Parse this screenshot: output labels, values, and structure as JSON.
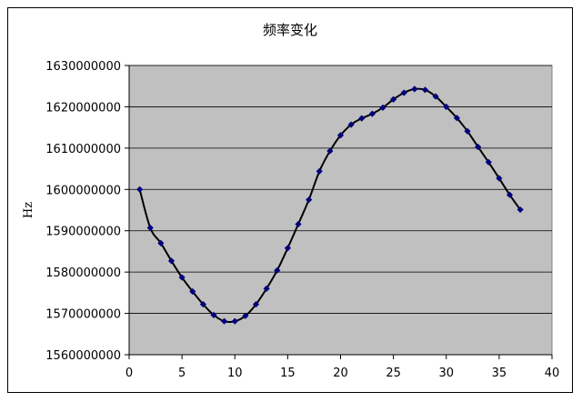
{
  "chart_data": {
    "type": "line",
    "title": "频率变化",
    "xlabel": "",
    "ylabel": "Hz",
    "xlim": [
      0,
      40
    ],
    "ylim": [
      1560000000,
      1630000000
    ],
    "x_ticks": [
      0,
      5,
      10,
      15,
      20,
      25,
      30,
      35,
      40
    ],
    "y_ticks": [
      1560000000,
      1570000000,
      1580000000,
      1590000000,
      1600000000,
      1610000000,
      1620000000,
      1630000000
    ],
    "y_tick_labels": [
      "1560000000",
      "1570000000",
      "1580000000",
      "1590000000",
      "1600000000",
      "1610000000",
      "1620000000",
      "1630000000"
    ],
    "x_tick_labels": [
      "0",
      "5",
      "10",
      "15",
      "20",
      "25",
      "30",
      "35",
      "40"
    ],
    "grid": "horizontal",
    "legend": "none",
    "plot_background": "#c0c0c0",
    "line_color": "#000000",
    "marker_color": "#000080",
    "marker": "diamond",
    "series": [
      {
        "x": [
          1,
          2,
          3,
          4,
          5,
          6,
          7,
          8,
          9,
          10,
          11,
          12,
          13,
          14,
          15,
          16,
          17,
          18,
          19,
          20,
          21,
          22,
          23,
          24,
          25,
          26,
          27,
          28,
          29,
          30,
          31,
          32,
          33,
          34,
          35,
          36,
          37
        ],
        "values": [
          1600000000,
          1590700000,
          1587000000,
          1582700000,
          1578700000,
          1575300000,
          1572200000,
          1569600000,
          1568100000,
          1568100000,
          1569400000,
          1572200000,
          1576000000,
          1580400000,
          1585800000,
          1591600000,
          1597500000,
          1604400000,
          1609300000,
          1613100000,
          1615700000,
          1617200000,
          1618300000,
          1619800000,
          1621800000,
          1623400000,
          1624300000,
          1624100000,
          1622500000,
          1620000000,
          1617300000,
          1614100000,
          1610300000,
          1606600000,
          1602700000,
          1598700000,
          1595100000
        ]
      }
    ]
  }
}
